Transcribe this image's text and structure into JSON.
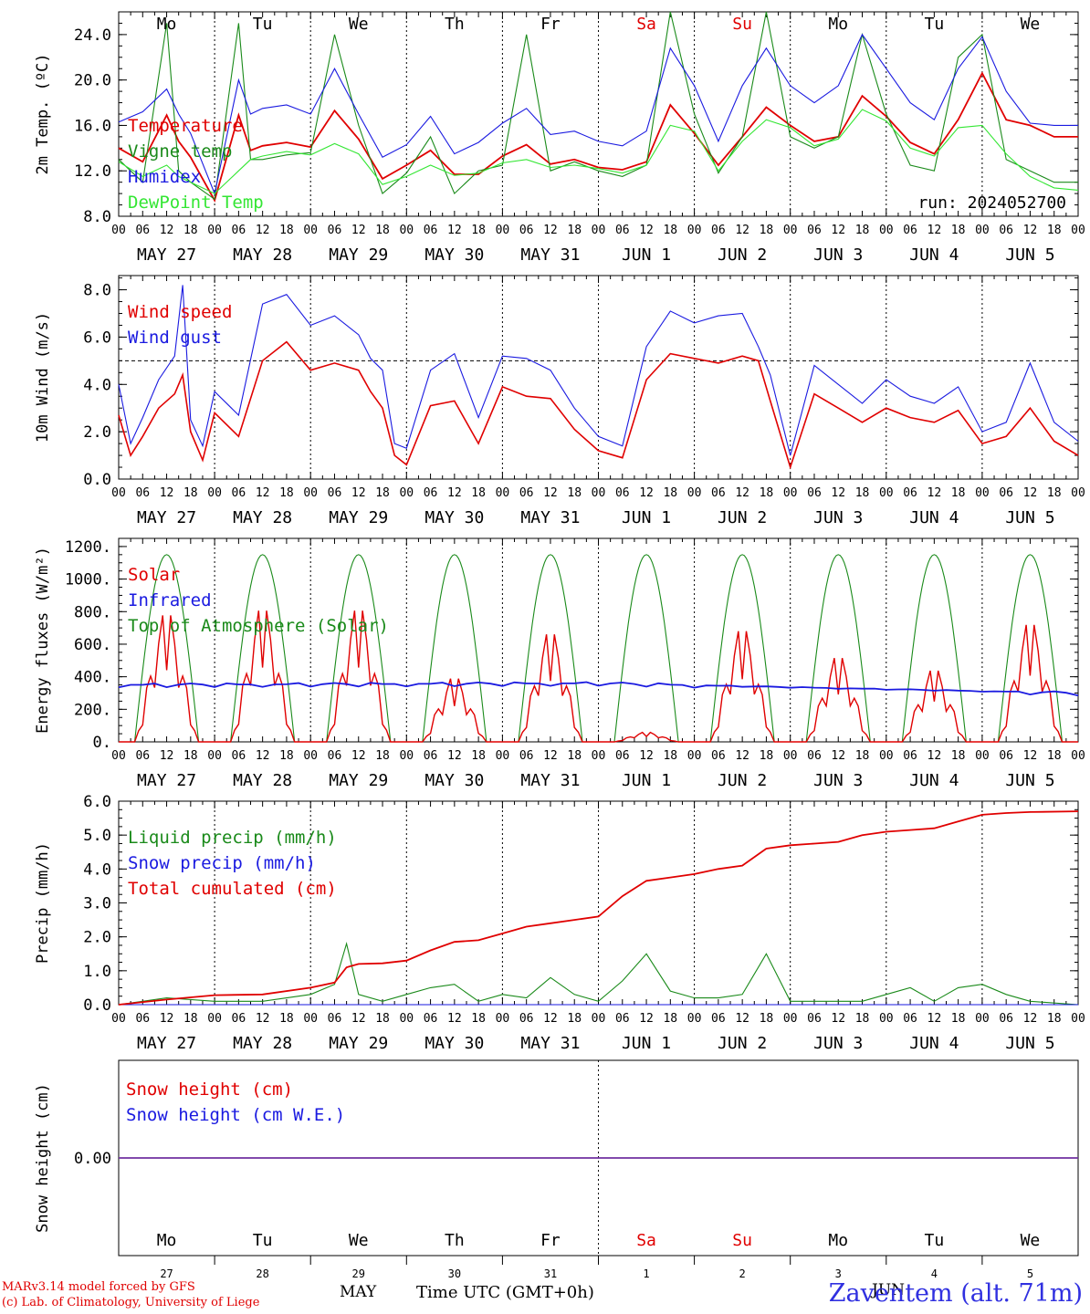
{
  "run_label": "run: 2024052700",
  "footer": {
    "model": "MARv3.14 model forced by GFS",
    "lab": "(c) Lab. of Climatology, University of Liege",
    "time_axis": "Time UTC (GMT+0h)",
    "month": "MAY",
    "month2": "JUN",
    "station": "Zaventem (alt. 71m)"
  },
  "colors": {
    "red": "#e00000",
    "green": "#1a8a1a",
    "blue": "#1a1ae0",
    "lightgreen": "#33e633",
    "purple": "#7030a0"
  },
  "days": [
    {
      "abbr": "Mo",
      "label": "MAY 27",
      "num": "27",
      "weekend": false
    },
    {
      "abbr": "Tu",
      "label": "MAY 28",
      "num": "28",
      "weekend": false
    },
    {
      "abbr": "We",
      "label": "MAY 29",
      "num": "29",
      "weekend": false
    },
    {
      "abbr": "Th",
      "label": "MAY 30",
      "num": "30",
      "weekend": false
    },
    {
      "abbr": "Fr",
      "label": "MAY 31",
      "num": "31",
      "weekend": false
    },
    {
      "abbr": "Sa",
      "label": "JUN  1",
      "num": "1",
      "weekend": true
    },
    {
      "abbr": "Su",
      "label": "JUN  2",
      "num": "2",
      "weekend": true
    },
    {
      "abbr": "Mo",
      "label": "JUN  3",
      "num": "3",
      "weekend": false
    },
    {
      "abbr": "Tu",
      "label": "JUN  4",
      "num": "4",
      "weekend": false
    },
    {
      "abbr": "We",
      "label": "JUN  5",
      "num": "5",
      "weekend": false
    }
  ],
  "hour_ticks": [
    "00",
    "06",
    "12",
    "18"
  ],
  "chart_data": [
    {
      "type": "line",
      "ylabel": "2m Temp. (ºC)",
      "ylim": [
        8,
        26
      ],
      "yticks": [
        "8.0",
        "12.0",
        "16.0",
        "20.0",
        "24.0"
      ],
      "grid": "vertical-dotted-at-midnight",
      "x_hours": [
        0,
        6,
        12,
        15,
        18,
        24,
        30,
        33,
        36,
        42,
        48,
        54,
        60,
        66,
        72,
        78,
        84,
        90,
        96,
        102,
        108,
        114,
        120,
        126,
        132,
        138,
        144,
        150,
        156,
        162,
        168,
        174,
        180,
        186,
        192,
        198,
        204,
        210,
        216,
        222,
        228,
        234,
        240
      ],
      "series": [
        {
          "name": "Temperature",
          "color": "red",
          "values": [
            14,
            12.8,
            16.9,
            14.6,
            13.2,
            9.4,
            16.9,
            13.8,
            14.2,
            14.5,
            14.1,
            17.3,
            14.8,
            11.3,
            12.5,
            13.8,
            11.7,
            11.7,
            13.3,
            14.3,
            12.6,
            13.0,
            12.3,
            12.1,
            12.8,
            17.8,
            15.3,
            12.5,
            15.0,
            17.6,
            16.0,
            14.6,
            15.0,
            18.6,
            16.8,
            14.5,
            13.5,
            16.5,
            20.6,
            16.5,
            16.0,
            15.0,
            15.0
          ]
        },
        {
          "name": "Vigne temp",
          "color": "green",
          "values": [
            13,
            11,
            25,
            12,
            11,
            9.5,
            25,
            13,
            13,
            13.4,
            13.6,
            24,
            16,
            10,
            11.8,
            15,
            10,
            12,
            12.5,
            24,
            12,
            12.8,
            12,
            11.5,
            12.5,
            26,
            17,
            11.8,
            15,
            26,
            15,
            14,
            15,
            24,
            17,
            12.5,
            12,
            22,
            24,
            13,
            12,
            11,
            11
          ]
        },
        {
          "name": "Humidex",
          "color": "blue",
          "values": [
            16.3,
            17.2,
            19.2,
            17.0,
            15.3,
            10,
            20.0,
            17.0,
            17.5,
            17.8,
            17.0,
            21.0,
            17.0,
            13.2,
            14.3,
            16.8,
            13.5,
            14.5,
            16.2,
            17.5,
            15.2,
            15.5,
            14.6,
            14.2,
            15.5,
            22.8,
            19.5,
            14.6,
            19.5,
            22.8,
            19.5,
            18.0,
            19.5,
            24.0,
            21.0,
            18.0,
            16.5,
            21.0,
            23.8,
            19.0,
            16.2,
            16.0,
            16.0
          ]
        },
        {
          "name": "DewPoint Temp",
          "color": "lightgreen",
          "values": [
            12.8,
            11.5,
            12.5,
            11.5,
            11.0,
            10.0,
            12.0,
            13.0,
            13.3,
            13.7,
            13.4,
            14.4,
            13.5,
            10.8,
            11.5,
            12.5,
            11.6,
            11.8,
            12.7,
            13.0,
            12.3,
            12.5,
            12.2,
            11.8,
            12.5,
            16.0,
            15.5,
            12.0,
            14.6,
            16.5,
            15.8,
            14.2,
            14.8,
            17.4,
            16.4,
            14.0,
            13.3,
            15.8,
            16.0,
            13.5,
            11.5,
            10.5,
            10.3
          ]
        }
      ]
    },
    {
      "type": "line",
      "ylabel": "10m Wind (m/s)",
      "ylim": [
        0,
        8.6
      ],
      "yticks": [
        "0.0",
        "2.0",
        "4.0",
        "6.0",
        "8.0"
      ],
      "ref_line": 5.0,
      "x_hours": [
        0,
        3,
        6,
        10,
        14,
        16,
        18,
        21,
        24,
        30,
        36,
        42,
        48,
        54,
        60,
        63,
        66,
        69,
        72,
        78,
        84,
        90,
        96,
        102,
        108,
        114,
        120,
        126,
        132,
        138,
        144,
        150,
        156,
        160,
        163,
        168,
        174,
        180,
        186,
        192,
        198,
        204,
        210,
        216,
        222,
        228,
        234,
        240
      ],
      "series": [
        {
          "name": "Wind speed",
          "color": "red",
          "values": [
            2.7,
            1.0,
            1.8,
            3.0,
            3.6,
            4.4,
            2.0,
            0.8,
            2.8,
            1.8,
            5.0,
            5.8,
            4.6,
            4.9,
            4.6,
            3.7,
            3.0,
            1.0,
            0.6,
            3.1,
            3.3,
            1.5,
            3.9,
            3.5,
            3.4,
            2.1,
            1.2,
            0.9,
            4.2,
            5.3,
            5.1,
            4.9,
            5.2,
            5.0,
            3.3,
            0.5,
            3.6,
            3.0,
            2.4,
            3.0,
            2.6,
            2.4,
            2.9,
            1.5,
            1.8,
            3.0,
            1.6,
            1.0
          ]
        },
        {
          "name": "Wind gust",
          "color": "blue",
          "values": [
            4.0,
            1.5,
            2.6,
            4.2,
            5.2,
            8.2,
            2.5,
            1.4,
            3.7,
            2.7,
            7.4,
            7.8,
            6.5,
            6.9,
            6.1,
            5.1,
            4.6,
            1.5,
            1.3,
            4.6,
            5.3,
            2.6,
            5.2,
            5.1,
            4.6,
            3.0,
            1.8,
            1.4,
            5.6,
            7.1,
            6.6,
            6.9,
            7.0,
            5.6,
            4.4,
            1.0,
            4.8,
            4.0,
            3.2,
            4.2,
            3.5,
            3.2,
            3.9,
            2.0,
            2.4,
            4.9,
            2.4,
            1.6
          ]
        }
      ]
    },
    {
      "type": "line",
      "ylabel": "Energy fluxes (W/m²)",
      "ylim": [
        0,
        1250
      ],
      "yticks": [
        "0.",
        "200.",
        "400.",
        "600.",
        "800.",
        "1000.",
        "1200."
      ],
      "toa_peak": 1150,
      "daylight_hours": [
        4,
        20
      ],
      "solar_peaks": [
        800,
        830,
        830,
        400,
        680,
        60,
        700,
        530,
        450,
        740
      ],
      "infrared": {
        "start": 350,
        "mid": 360,
        "end": 300
      },
      "series": [
        {
          "name": "Solar",
          "color": "red"
        },
        {
          "name": "Infrared",
          "color": "blue"
        },
        {
          "name": "Top of Atmosphere (Solar)",
          "color": "green"
        }
      ]
    },
    {
      "type": "line",
      "ylabel": "Precip (mm/h)",
      "ylim": [
        0,
        6
      ],
      "yticks": [
        "0.0",
        "1.0",
        "2.0",
        "3.0",
        "4.0",
        "5.0",
        "6.0"
      ],
      "x_hours": [
        0,
        12,
        24,
        36,
        48,
        54,
        57,
        60,
        66,
        72,
        78,
        84,
        90,
        96,
        102,
        108,
        114,
        120,
        126,
        132,
        138,
        144,
        150,
        156,
        162,
        168,
        174,
        180,
        186,
        192,
        198,
        204,
        210,
        216,
        222,
        228,
        240
      ],
      "series": [
        {
          "name": "Liquid precip (mm/h)",
          "color": "green",
          "values": [
            0,
            0.2,
            0.1,
            0.1,
            0.3,
            0.6,
            1.8,
            0.3,
            0.1,
            0.3,
            0.5,
            0.6,
            0.1,
            0.3,
            0.2,
            0.8,
            0.3,
            0.1,
            0.7,
            1.5,
            0.4,
            0.2,
            0.2,
            0.3,
            1.5,
            0.1,
            0.1,
            0.1,
            0.1,
            0.3,
            0.5,
            0.1,
            0.5,
            0.6,
            0.3,
            0.1,
            0.0
          ]
        },
        {
          "name": "Snow precip (mm/h)",
          "color": "blue",
          "values": [
            0,
            0,
            0,
            0,
            0,
            0,
            0,
            0,
            0,
            0,
            0,
            0,
            0,
            0,
            0,
            0,
            0,
            0,
            0,
            0,
            0,
            0,
            0,
            0,
            0,
            0,
            0,
            0,
            0,
            0,
            0,
            0,
            0,
            0,
            0,
            0,
            0
          ]
        },
        {
          "name": "Total cumulated (cm)",
          "color": "red",
          "values": [
            0.0,
            0.15,
            0.28,
            0.3,
            0.5,
            0.65,
            1.1,
            1.2,
            1.22,
            1.3,
            1.6,
            1.85,
            1.9,
            2.1,
            2.3,
            2.4,
            2.5,
            2.6,
            3.2,
            3.65,
            3.75,
            3.85,
            4.0,
            4.1,
            4.6,
            4.7,
            4.75,
            4.8,
            5.0,
            5.1,
            5.15,
            5.2,
            5.4,
            5.6,
            5.65,
            5.68,
            5.7
          ]
        }
      ]
    },
    {
      "type": "line",
      "ylabel": "Snow height (cm)",
      "yticks": [
        "0.00"
      ],
      "series": [
        {
          "name": "Snow height (cm)",
          "color": "red",
          "values": [
            0,
            0
          ]
        },
        {
          "name": "Snow height (cm W.E.)",
          "color": "blue",
          "values": [
            0,
            0
          ]
        }
      ]
    }
  ]
}
